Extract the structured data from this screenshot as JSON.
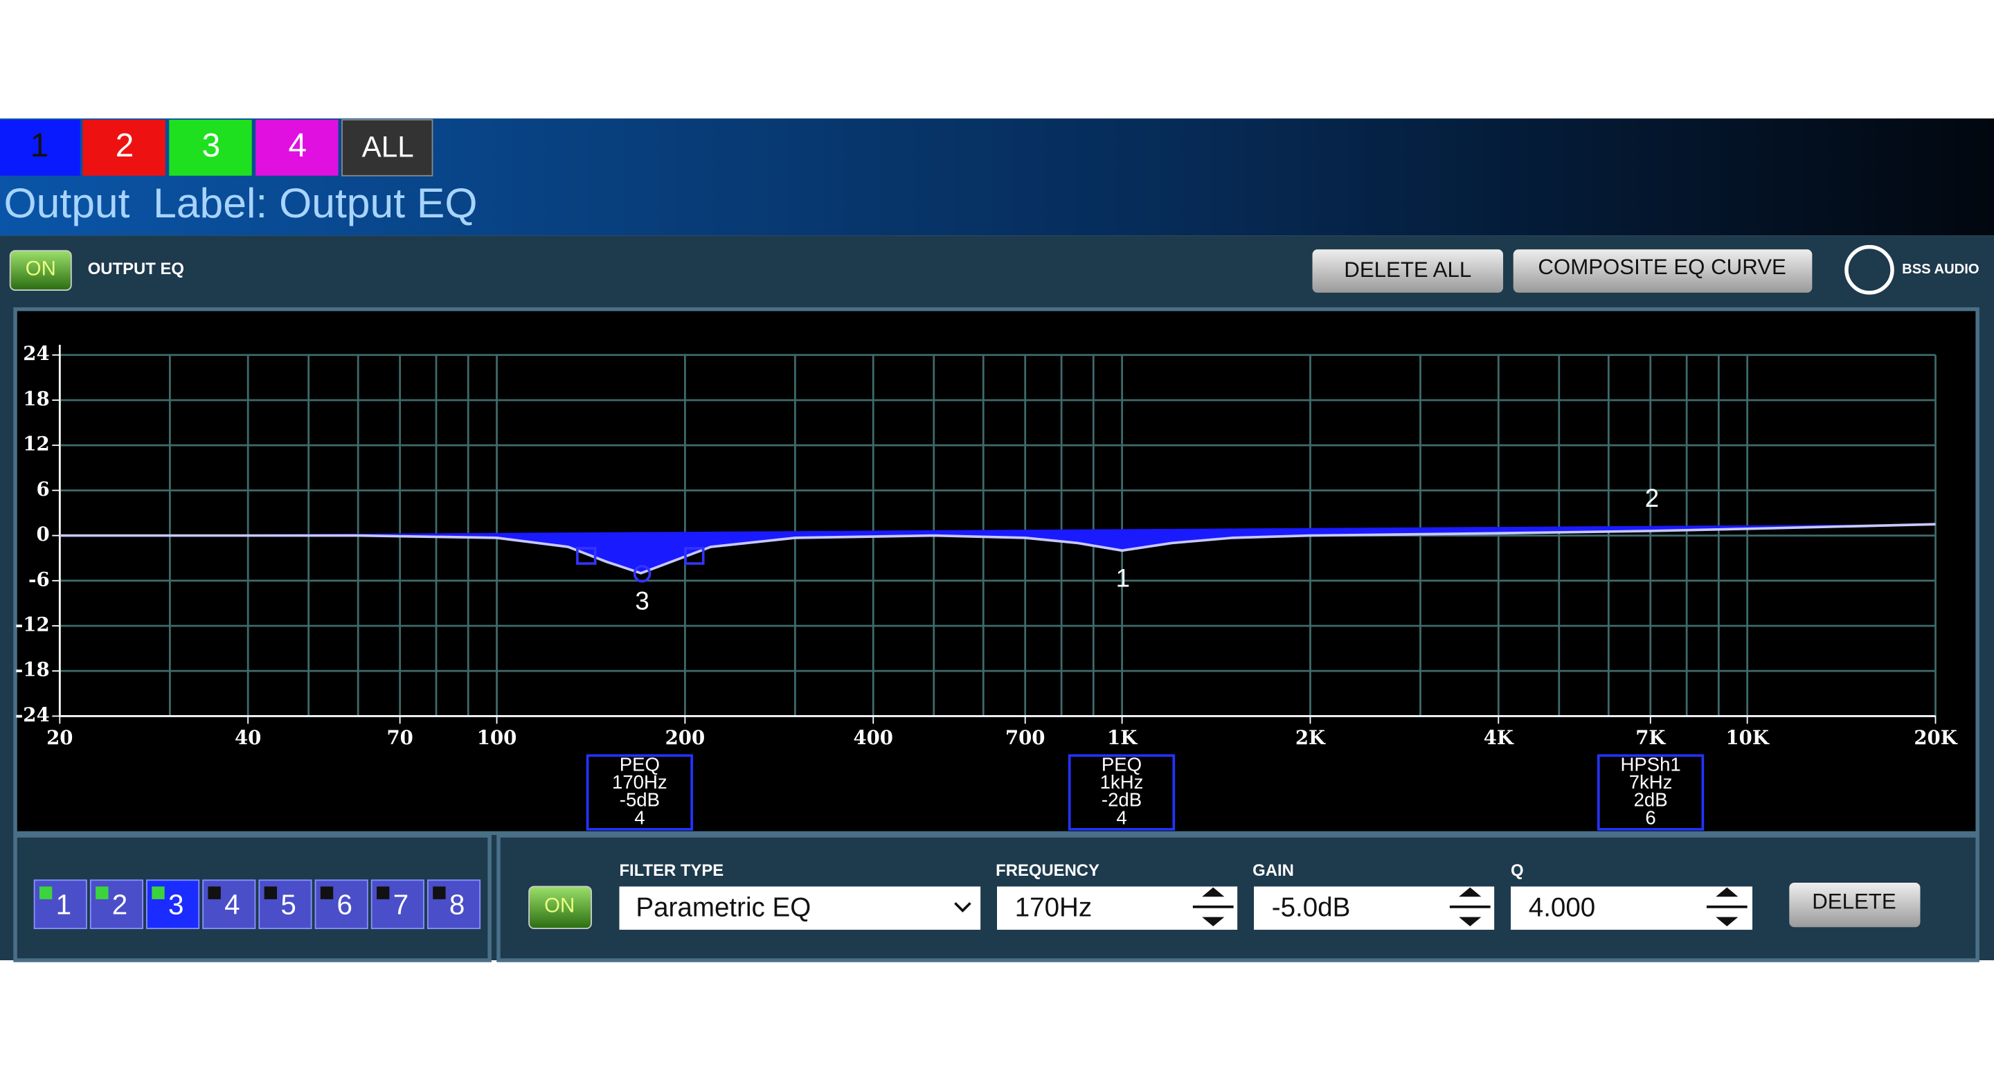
{
  "header": {
    "tabs": [
      "1",
      "2",
      "3",
      "4",
      "ALL"
    ],
    "label_title": "Output  Label: Output EQ"
  },
  "toolbar": {
    "on_button": "ON",
    "section": "OUTPUT EQ",
    "delete_all": "DELETE ALL",
    "composite": "COMPOSITE EQ CURVE",
    "logo": "BSS AUDIO"
  },
  "chart_data": {
    "type": "line",
    "xscale": "log",
    "xlim": [
      20,
      20000
    ],
    "ylim": [
      -24,
      24
    ],
    "yticks": [
      24,
      18,
      12,
      6,
      0,
      -6,
      -12,
      -18,
      -24
    ],
    "xticks": [
      20,
      40,
      70,
      100,
      200,
      400,
      700,
      {
        "value": 1000,
        "label": "1K"
      },
      {
        "value": 2000,
        "label": "2K"
      },
      {
        "value": 4000,
        "label": "4K"
      },
      {
        "value": 7000,
        "label": "7K"
      },
      {
        "value": 10000,
        "label": "10K"
      },
      {
        "value": 20000,
        "label": "20K"
      }
    ],
    "x_grid": [
      20,
      30,
      40,
      50,
      60,
      70,
      80,
      90,
      100,
      200,
      300,
      400,
      500,
      600,
      700,
      800,
      900,
      1000,
      2000,
      3000,
      4000,
      5000,
      6000,
      7000,
      8000,
      9000,
      10000,
      20000
    ],
    "grid": true,
    "color": "#1a1aff",
    "curve": {
      "x": [
        20,
        60,
        100,
        130,
        150,
        170,
        190,
        220,
        300,
        500,
        700,
        850,
        1000,
        1200,
        1500,
        2000,
        4000,
        7000,
        10000,
        20000
      ],
      "values": [
        0,
        0,
        -0.3,
        -1.5,
        -3.5,
        -5,
        -3.5,
        -1.5,
        -0.3,
        0,
        -0.3,
        -1,
        -2,
        -1,
        -0.3,
        0,
        0.3,
        0.6,
        0.9,
        1.5
      ]
    },
    "markers": [
      "3",
      "1",
      "2"
    ],
    "filters": [
      {
        "type": "PEQ",
        "freq": "170Hz",
        "gain": "-5dB",
        "q": "4"
      },
      {
        "type": "PEQ",
        "freq": "1kHz",
        "gain": "-2dB",
        "q": "4"
      },
      {
        "type": "HPSh1",
        "freq": "7kHz",
        "gain": "2dB",
        "q": "6"
      }
    ]
  },
  "bands": [
    "1",
    "2",
    "3",
    "4",
    "5",
    "6",
    "7",
    "8"
  ],
  "editor": {
    "on_button": "ON",
    "filter_type_label": "FILTER TYPE",
    "filter_type": "Parametric EQ",
    "frequency_label": "FREQUENCY",
    "frequency": "170Hz",
    "gain_label": "GAIN",
    "gain": "-5.0dB",
    "q_label": "Q",
    "q": "4.000",
    "delete": "DELETE"
  }
}
